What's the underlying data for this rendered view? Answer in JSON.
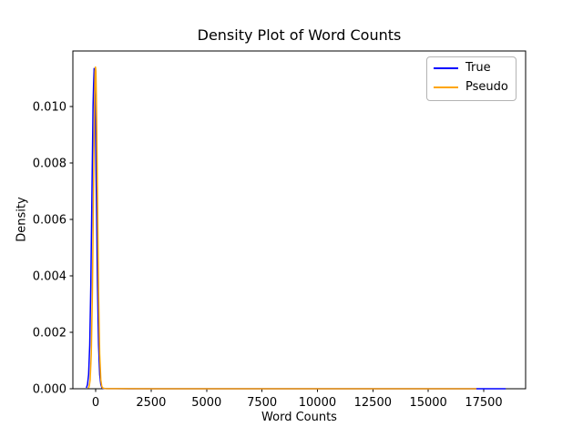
{
  "figure": {
    "background": "#ffffff"
  },
  "chart_data": {
    "type": "line",
    "title": "Density Plot of Word Counts",
    "xlabel": "Word Counts",
    "ylabel": "Density",
    "xlim": [
      -1030,
      19390
    ],
    "ylim": [
      0,
      0.01197
    ],
    "grid": false,
    "x_ticks": {
      "values": [
        0,
        2500,
        5000,
        7500,
        10000,
        12500,
        15000,
        17500
      ],
      "labels": [
        "0",
        "2500",
        "5000",
        "7500",
        "10000",
        "12500",
        "15000",
        "17500"
      ]
    },
    "y_ticks": {
      "values": [
        0,
        0.002,
        0.004,
        0.006,
        0.008,
        0.01
      ],
      "labels": [
        "0.000",
        "0.002",
        "0.004",
        "0.006",
        "0.008",
        "0.010"
      ]
    },
    "legend": {
      "position": "upper right",
      "entries": [
        {
          "label": "True",
          "color": "#0000ff"
        },
        {
          "label": "Pseudo",
          "color": "#ffa500"
        }
      ]
    },
    "series": [
      {
        "name": "True",
        "color": "#0000ff",
        "linewidth": 1.5,
        "peak": {
          "x": -70,
          "density": 0.01135
        },
        "points": [
          [
            -420,
            3e-05
          ],
          [
            -370,
            0.00015
          ],
          [
            -320,
            0.0005
          ],
          [
            -270,
            0.00154
          ],
          [
            -220,
            0.0037
          ],
          [
            -170,
            0.0069
          ],
          [
            -120,
            0.01
          ],
          [
            -95,
            0.0108
          ],
          [
            -70,
            0.01135
          ],
          [
            -45,
            0.0108
          ],
          [
            -20,
            0.01
          ],
          [
            30,
            0.0069
          ],
          [
            80,
            0.0037
          ],
          [
            130,
            0.00154
          ],
          [
            180,
            0.0005
          ],
          [
            230,
            0.00015
          ],
          [
            280,
            4e-05
          ],
          [
            350,
            1e-05
          ],
          [
            500,
            4e-06
          ],
          [
            800,
            3e-06
          ],
          [
            1500,
            2e-06
          ],
          [
            3000,
            2e-06
          ],
          [
            6000,
            2e-06
          ],
          [
            10000,
            2e-06
          ],
          [
            14000,
            2e-06
          ],
          [
            17000,
            2e-06
          ],
          [
            18000,
            2e-06
          ],
          [
            18490,
            2e-06
          ]
        ]
      },
      {
        "name": "Pseudo",
        "color": "#ffa500",
        "linewidth": 1.5,
        "peak": {
          "x": -10,
          "density": 0.0114
        },
        "points": [
          [
            -330,
            2e-05
          ],
          [
            -290,
            0.0001
          ],
          [
            -250,
            0.00032
          ],
          [
            -200,
            0.00123
          ],
          [
            -150,
            0.0034
          ],
          [
            -100,
            0.0069
          ],
          [
            -50,
            0.0103
          ],
          [
            -30,
            0.01125
          ],
          [
            -10,
            0.0114
          ],
          [
            10,
            0.01125
          ],
          [
            30,
            0.0103
          ],
          [
            80,
            0.0069
          ],
          [
            130,
            0.0034
          ],
          [
            180,
            0.00123
          ],
          [
            230,
            0.00032
          ],
          [
            270,
            0.0001
          ],
          [
            310,
            3e-05
          ],
          [
            400,
            1e-05
          ],
          [
            600,
            4e-06
          ],
          [
            1200,
            3e-06
          ],
          [
            2500,
            2e-06
          ],
          [
            5000,
            2e-06
          ],
          [
            9000,
            2e-06
          ],
          [
            13000,
            2e-06
          ],
          [
            16000,
            2e-06
          ],
          [
            17170,
            2e-06
          ]
        ]
      }
    ]
  }
}
